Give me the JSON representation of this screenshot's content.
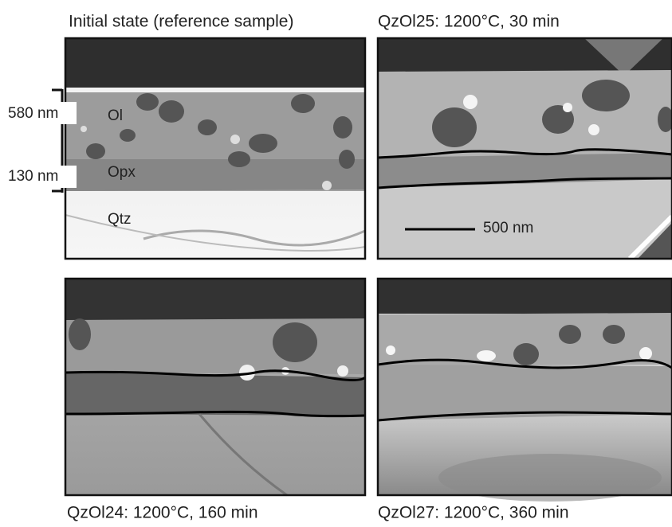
{
  "panels": [
    {
      "title": "Initial state (reference sample)"
    },
    {
      "title": "QzOl25: 1200°C, 30 min"
    },
    {
      "title": "QzOl24: 1200°C, 160 min"
    },
    {
      "title": "QzOl27: 1200°C, 360 min"
    }
  ],
  "thickness_labels": [
    "580 nm",
    "130 nm"
  ],
  "layer_labels": [
    "Ol",
    "Opx",
    "Qtz"
  ],
  "scale_bar": "500 nm"
}
